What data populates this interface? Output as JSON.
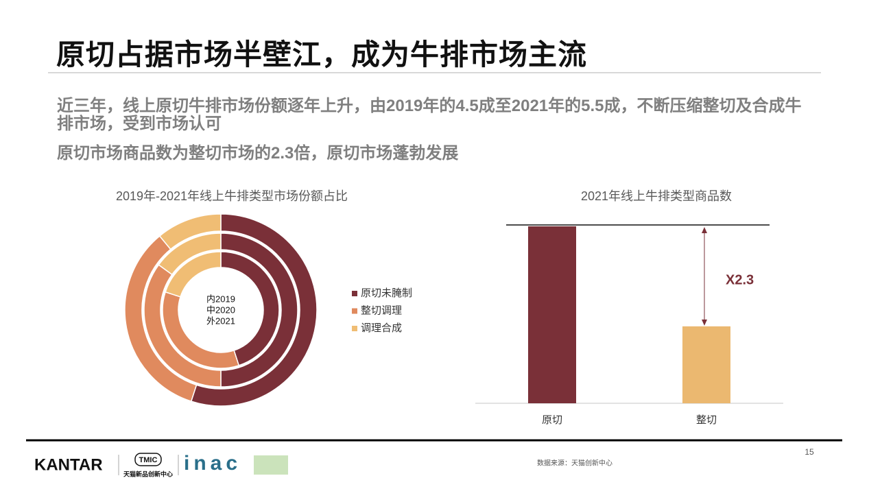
{
  "title": "原切占据市场半壁江，成为牛排市场主流",
  "bullets": [
    "近三年，线上原切牛排市场份额逐年上升，由2019年的4.5成至2021年的5.5成，不断压缩整切及合成牛排市场，受到市场认可",
    "原切市场商品数为整切市场的2.3倍，原切市场蓬勃发展"
  ],
  "chart_data": [
    {
      "type": "donut",
      "title": "2019年-2021年线上牛排类型市场份额占比",
      "categories": [
        "原切未腌制",
        "整切调理",
        "调理合成"
      ],
      "colors": [
        "#7a3038",
        "#e08a5e",
        "#f0bd74"
      ],
      "series": [
        {
          "name": "内2019",
          "values": [
            45,
            35,
            20
          ]
        },
        {
          "name": "中2020",
          "values": [
            50,
            35,
            15
          ]
        },
        {
          "name": "外2021",
          "values": [
            55,
            34,
            11
          ]
        }
      ]
    },
    {
      "type": "bar",
      "title": "2021年线上牛排类型商品数",
      "categories": [
        "原切",
        "整切"
      ],
      "values": [
        230,
        100
      ],
      "colors": [
        "#7a3038",
        "#ebb870"
      ],
      "ylim": [
        0,
        230
      ],
      "annotation": "X2.3"
    }
  ],
  "footer": {
    "logos": [
      "KANTAR",
      "TMIC",
      "天猫新品创新中心",
      "inac"
    ],
    "source": "数据来源：天猫创新中心",
    "page": "15"
  }
}
